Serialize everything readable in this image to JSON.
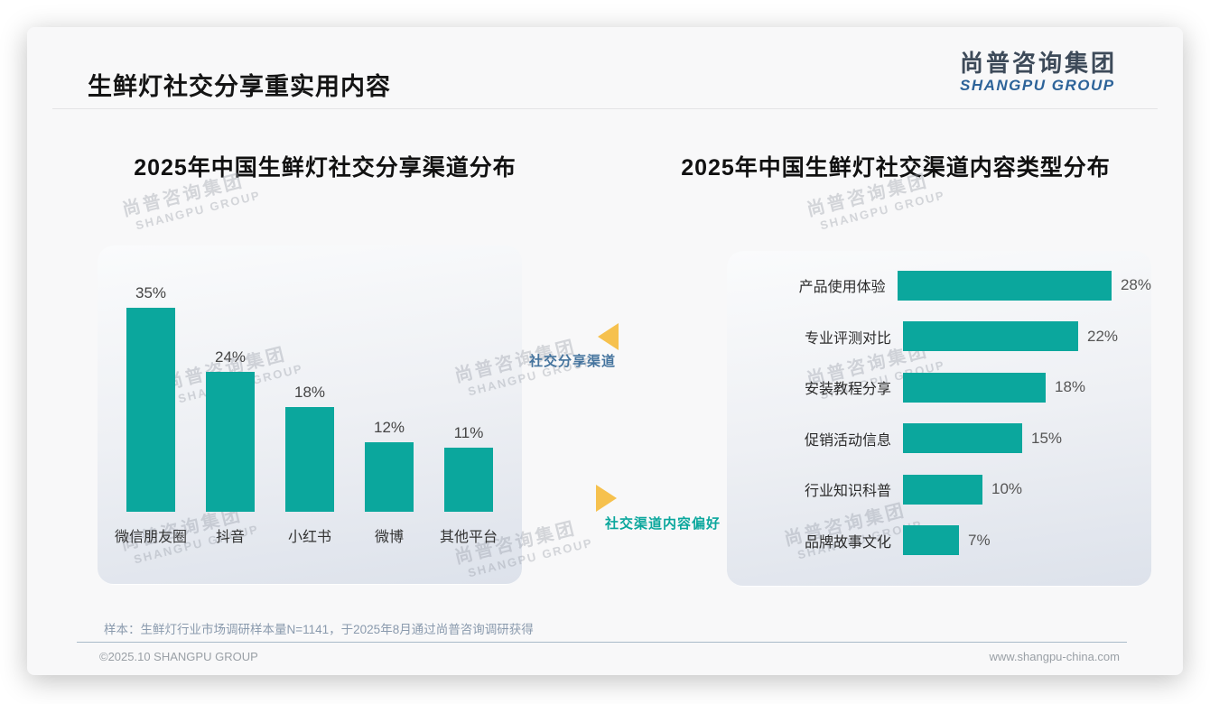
{
  "page": {
    "title": "生鲜灯社交分享重实用内容",
    "logo": {
      "cn": "尚普咨询集团",
      "en": "SHANGPU GROUP"
    },
    "watermark": {
      "cn": "尚普咨询集团",
      "en": "SHANGPU GROUP"
    },
    "footnote": "样本：生鲜灯行业市场调研样本量N=1141，于2025年8月通过尚普咨询调研获得",
    "footer": {
      "left": "©2025.10 SHANGPU GROUP",
      "right": "www.shangpu-china.com"
    }
  },
  "annotations": {
    "left_chart_tag": "社交分享渠道",
    "right_chart_tag": "社交渠道内容偏好"
  },
  "colors": {
    "bar": "#0ba79d",
    "accent_blue": "#45749e",
    "accent_teal": "#0ba79d",
    "arrow": "#f6c14e",
    "logo_cn": "#3d4a59",
    "logo_en": "#2d6399"
  },
  "chart_data": [
    {
      "type": "bar",
      "orientation": "vertical",
      "title": "2025年中国生鲜灯社交分享渠道分布",
      "categories": [
        "微信朋友圈",
        "抖音",
        "小红书",
        "微博",
        "其他平台"
      ],
      "values": [
        35,
        24,
        18,
        12,
        11
      ],
      "unit": "%",
      "ylim": [
        0,
        40
      ],
      "grid": false,
      "legend": "none"
    },
    {
      "type": "bar",
      "orientation": "horizontal",
      "title": "2025年中国生鲜灯社交渠道内容类型分布",
      "categories": [
        "产品使用体验",
        "专业评测对比",
        "安装教程分享",
        "促销活动信息",
        "行业知识科普",
        "品牌故事文化"
      ],
      "values": [
        28,
        22,
        18,
        15,
        10,
        7
      ],
      "unit": "%",
      "xlim": [
        0,
        30
      ],
      "grid": false,
      "legend": "none"
    }
  ]
}
